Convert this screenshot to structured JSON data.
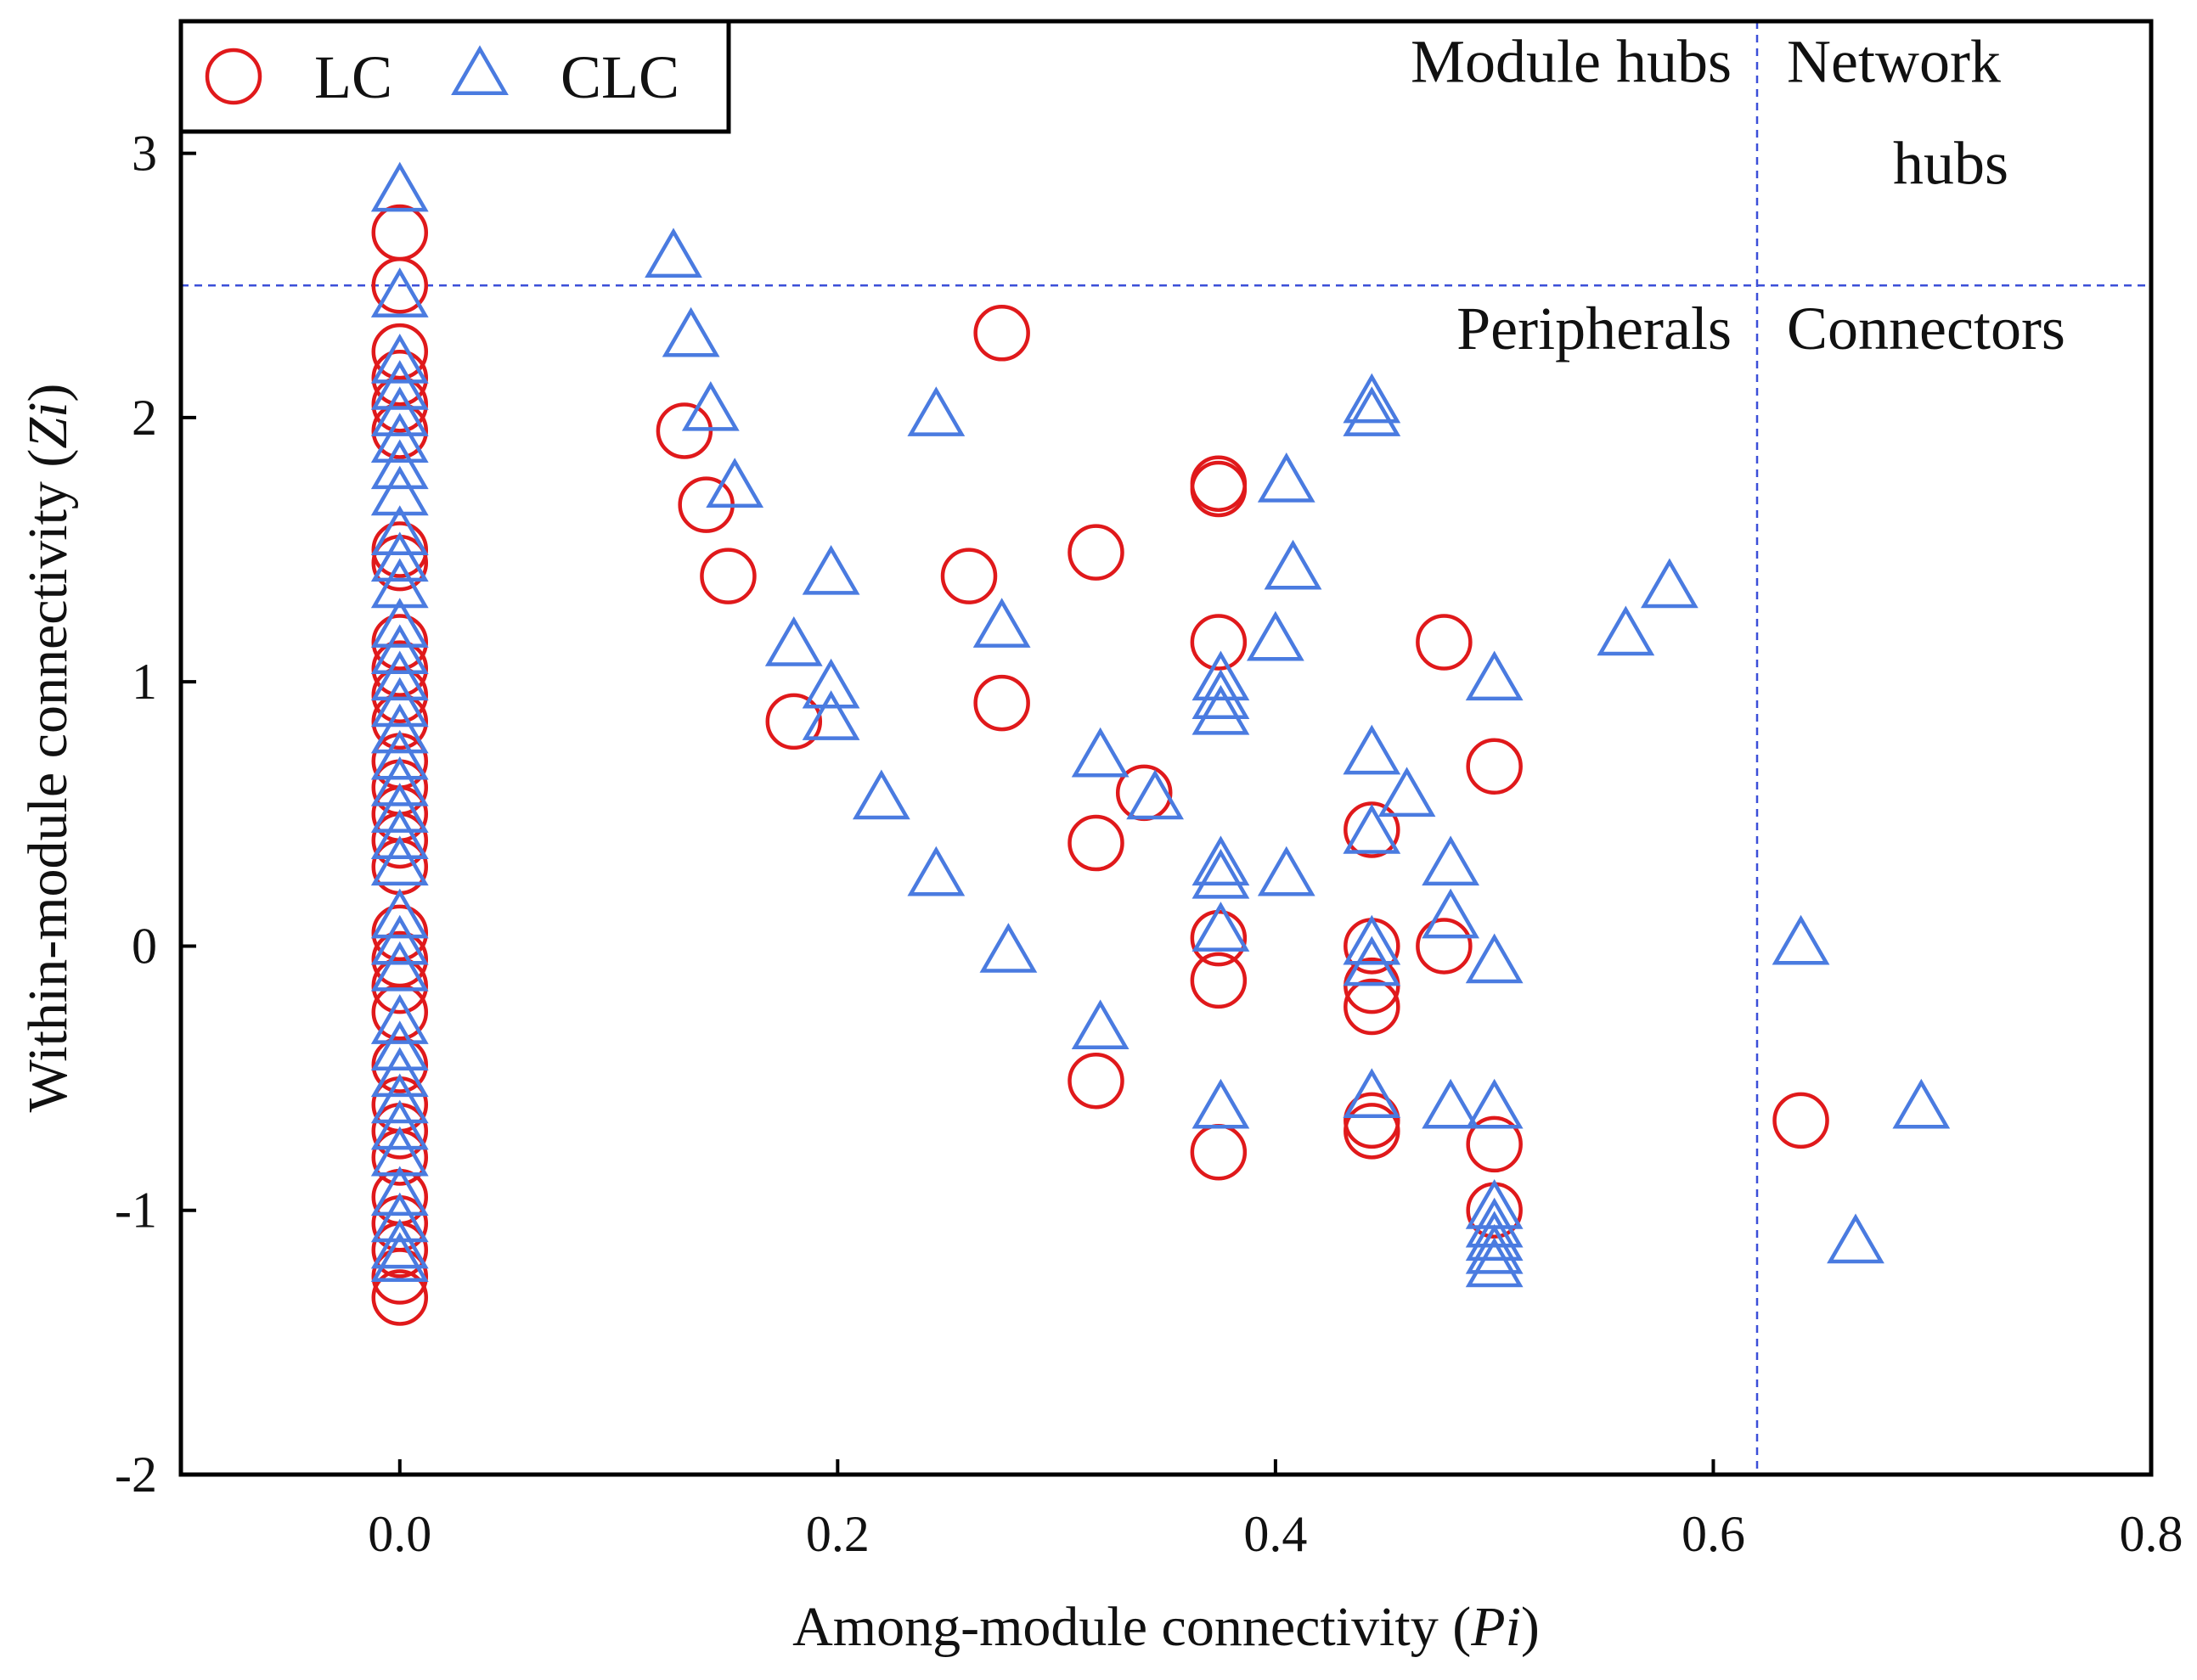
{
  "chart_data": {
    "type": "scatter",
    "xlabel": {
      "prefix": "Among-module connectivity (",
      "var": "Pi",
      "suffix": ")"
    },
    "ylabel": {
      "prefix": "Within-module connectivity (",
      "var": "Zi",
      "suffix": ")"
    },
    "xlim": [
      -0.1,
      0.8
    ],
    "ylim": [
      -2,
      3.5
    ],
    "x_ticks": [
      0.0,
      0.2,
      0.4,
      0.6,
      0.8
    ],
    "x_tick_labels": [
      "0.0",
      "0.2",
      "0.4",
      "0.6",
      "0.8"
    ],
    "y_ticks": [
      -2,
      -1,
      0,
      1,
      2,
      3
    ],
    "y_tick_labels": [
      "-2",
      "-1",
      "0",
      "1",
      "2",
      "3"
    ],
    "thresholds": {
      "x": 0.62,
      "y": 2.5
    },
    "region_labels": [
      {
        "name": "module-hubs",
        "lines": [
          "Module hubs"
        ],
        "x": 0.46,
        "y": 3.27
      },
      {
        "name": "network-hubs",
        "lines": [
          "Network",
          "hubs"
        ],
        "x": 0.675,
        "y": 3.27
      },
      {
        "name": "peripherals",
        "lines": [
          "Peripherals"
        ],
        "x": 0.46,
        "y": 2.26
      },
      {
        "name": "connectors",
        "lines": [
          "Connectors"
        ],
        "x": 0.675,
        "y": 2.26
      }
    ],
    "legend": {
      "position": "top-left",
      "entries": [
        {
          "label": "LC",
          "marker": "circle"
        },
        {
          "label": "CLC",
          "marker": "triangle"
        }
      ]
    },
    "colors": {
      "LC": "#e0191b",
      "CLC": "#4a7be0",
      "threshold": "#3b4fd8",
      "axis": "#000000"
    },
    "series": [
      {
        "name": "LC",
        "marker": "circle",
        "points": [
          [
            0.0,
            2.7
          ],
          [
            0.0,
            2.5
          ],
          [
            0.0,
            2.25
          ],
          [
            0.0,
            2.15
          ],
          [
            0.0,
            2.05
          ],
          [
            0.0,
            1.95
          ],
          [
            0.0,
            1.5
          ],
          [
            0.0,
            1.45
          ],
          [
            0.0,
            1.15
          ],
          [
            0.0,
            1.05
          ],
          [
            0.0,
            0.95
          ],
          [
            0.0,
            0.85
          ],
          [
            0.0,
            0.7
          ],
          [
            0.0,
            0.6
          ],
          [
            0.0,
            0.5
          ],
          [
            0.0,
            0.4
          ],
          [
            0.0,
            0.3
          ],
          [
            0.0,
            0.05
          ],
          [
            0.0,
            -0.05
          ],
          [
            0.0,
            -0.15
          ],
          [
            0.0,
            -0.25
          ],
          [
            0.0,
            -0.45
          ],
          [
            0.0,
            -0.6
          ],
          [
            0.0,
            -0.7
          ],
          [
            0.0,
            -0.8
          ],
          [
            0.0,
            -0.95
          ],
          [
            0.0,
            -1.05
          ],
          [
            0.0,
            -1.15
          ],
          [
            0.0,
            -1.25
          ],
          [
            0.0,
            -1.33
          ],
          [
            0.13,
            1.95
          ],
          [
            0.14,
            1.67
          ],
          [
            0.15,
            1.4
          ],
          [
            0.18,
            0.85
          ],
          [
            0.26,
            1.4
          ],
          [
            0.275,
            0.92
          ],
          [
            0.275,
            2.32
          ],
          [
            0.318,
            1.49
          ],
          [
            0.318,
            0.39
          ],
          [
            0.318,
            -0.51
          ],
          [
            0.34,
            0.58
          ],
          [
            0.374,
            1.75
          ],
          [
            0.374,
            1.73
          ],
          [
            0.374,
            1.15
          ],
          [
            0.374,
            0.03
          ],
          [
            0.374,
            -0.13
          ],
          [
            0.374,
            -0.78
          ],
          [
            0.444,
            0.44
          ],
          [
            0.444,
            0.0
          ],
          [
            0.444,
            -0.15
          ],
          [
            0.444,
            -0.23
          ],
          [
            0.444,
            -0.66
          ],
          [
            0.444,
            -0.7
          ],
          [
            0.477,
            1.15
          ],
          [
            0.477,
            0.0
          ],
          [
            0.5,
            0.68
          ],
          [
            0.5,
            -0.75
          ],
          [
            0.5,
            -1.0
          ],
          [
            0.64,
            -0.66
          ]
        ]
      },
      {
        "name": "CLC",
        "marker": "triangle",
        "points": [
          [
            0.0,
            2.85
          ],
          [
            0.0,
            2.45
          ],
          [
            0.0,
            2.2
          ],
          [
            0.0,
            2.1
          ],
          [
            0.0,
            2.0
          ],
          [
            0.0,
            1.9
          ],
          [
            0.0,
            1.8
          ],
          [
            0.0,
            1.7
          ],
          [
            0.0,
            1.55
          ],
          [
            0.0,
            1.45
          ],
          [
            0.0,
            1.35
          ],
          [
            0.0,
            1.2
          ],
          [
            0.0,
            1.1
          ],
          [
            0.0,
            1.0
          ],
          [
            0.0,
            0.9
          ],
          [
            0.0,
            0.8
          ],
          [
            0.0,
            0.7
          ],
          [
            0.0,
            0.6
          ],
          [
            0.0,
            0.5
          ],
          [
            0.0,
            0.4
          ],
          [
            0.0,
            0.3
          ],
          [
            0.0,
            0.1
          ],
          [
            0.0,
            0.0
          ],
          [
            0.0,
            -0.1
          ],
          [
            0.0,
            -0.3
          ],
          [
            0.0,
            -0.4
          ],
          [
            0.0,
            -0.5
          ],
          [
            0.0,
            -0.6
          ],
          [
            0.0,
            -0.7
          ],
          [
            0.0,
            -0.8
          ],
          [
            0.0,
            -0.95
          ],
          [
            0.0,
            -1.05
          ],
          [
            0.0,
            -1.15
          ],
          [
            0.0,
            -1.2
          ],
          [
            0.125,
            2.6
          ],
          [
            0.133,
            2.3
          ],
          [
            0.142,
            2.02
          ],
          [
            0.153,
            1.73
          ],
          [
            0.18,
            1.13
          ],
          [
            0.197,
            1.4
          ],
          [
            0.197,
            0.97
          ],
          [
            0.197,
            0.85
          ],
          [
            0.22,
            0.55
          ],
          [
            0.245,
            2.0
          ],
          [
            0.245,
            0.26
          ],
          [
            0.275,
            1.2
          ],
          [
            0.278,
            -0.03
          ],
          [
            0.32,
            0.71
          ],
          [
            0.32,
            -0.32
          ],
          [
            0.345,
            0.55
          ],
          [
            0.375,
            1.0
          ],
          [
            0.375,
            0.93
          ],
          [
            0.375,
            0.87
          ],
          [
            0.375,
            0.3
          ],
          [
            0.375,
            0.25
          ],
          [
            0.375,
            0.05
          ],
          [
            0.375,
            -0.62
          ],
          [
            0.4,
            1.15
          ],
          [
            0.405,
            1.75
          ],
          [
            0.408,
            1.42
          ],
          [
            0.405,
            0.26
          ],
          [
            0.444,
            2.05
          ],
          [
            0.444,
            2.0
          ],
          [
            0.444,
            0.72
          ],
          [
            0.444,
            0.42
          ],
          [
            0.444,
            0.0
          ],
          [
            0.444,
            -0.08
          ],
          [
            0.444,
            -0.58
          ],
          [
            0.46,
            0.56
          ],
          [
            0.48,
            0.3
          ],
          [
            0.48,
            0.1
          ],
          [
            0.48,
            -0.62
          ],
          [
            0.5,
            1.0
          ],
          [
            0.5,
            -0.07
          ],
          [
            0.5,
            -0.62
          ],
          [
            0.5,
            -1.0
          ],
          [
            0.5,
            -1.07
          ],
          [
            0.5,
            -1.12
          ],
          [
            0.5,
            -1.17
          ],
          [
            0.5,
            -1.22
          ],
          [
            0.56,
            1.17
          ],
          [
            0.58,
            1.35
          ],
          [
            0.64,
            0.0
          ],
          [
            0.665,
            -1.13
          ],
          [
            0.695,
            -0.62
          ]
        ]
      }
    ]
  }
}
